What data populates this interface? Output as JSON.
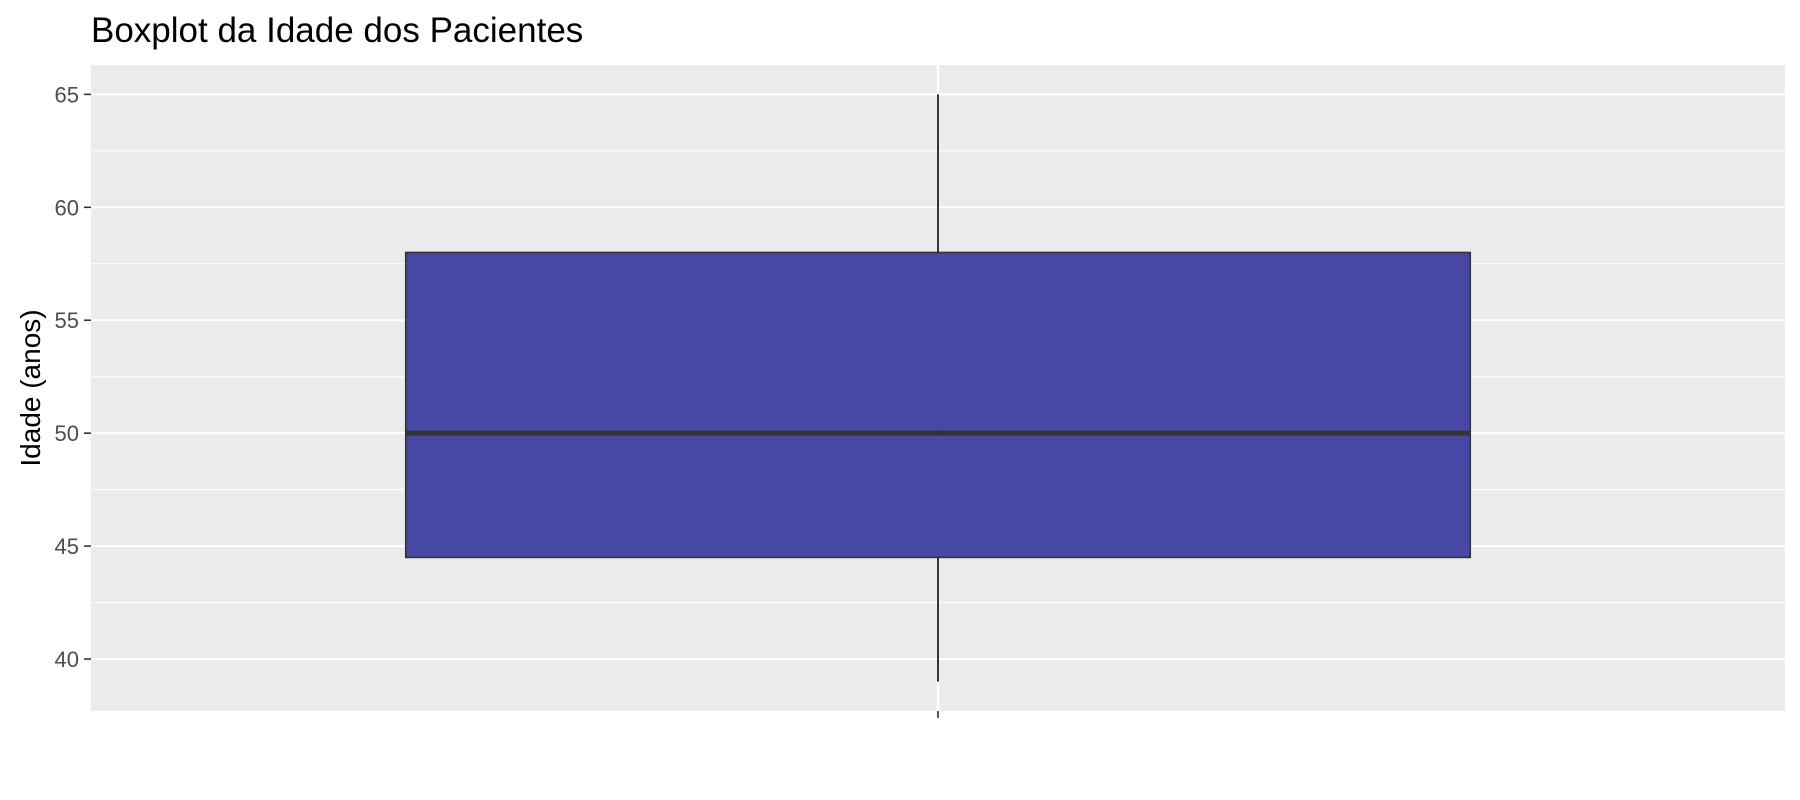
{
  "chart_data": {
    "type": "boxplot",
    "title": "Boxplot da Idade dos Pacientes",
    "xlabel": "",
    "ylabel": "Idade (anos)",
    "ylim": [
      37.7,
      66.3
    ],
    "yticks": [
      40,
      45,
      50,
      55,
      60,
      65
    ],
    "grid": true,
    "legend": "none",
    "box": {
      "whisker_low": 39,
      "q1": 44.5,
      "median": 50,
      "q3": 58,
      "whisker_high": 65
    },
    "colors": {
      "panel_background": "#ebebeb",
      "grid_line": "#ffffff",
      "box_fill": "#3a3aa0",
      "box_outline": "#333333",
      "median_line": "#333333",
      "whisker_line": "#000000",
      "tick_text": "#4d4d4d"
    }
  }
}
